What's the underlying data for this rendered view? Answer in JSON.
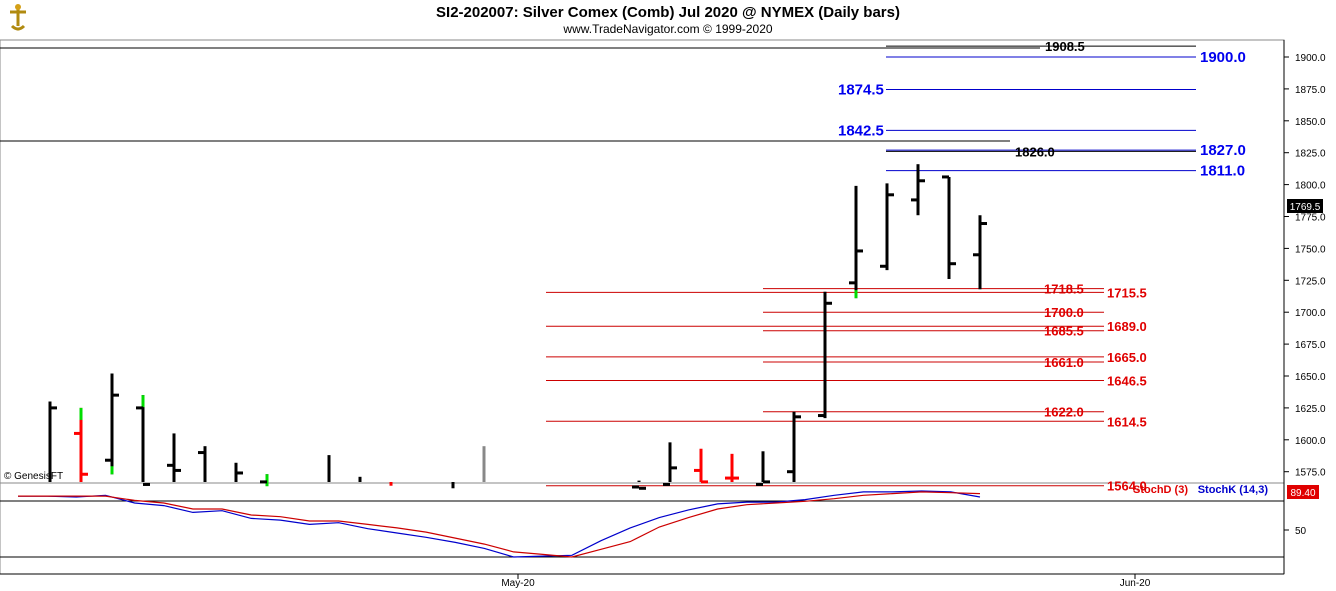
{
  "header": {
    "title": "SI2-202007:  Silver Comex (Comb) Jul 2020 @ NYMEX  (Daily bars)",
    "subtitle": "www.TradeNavigator.com © 1999-2020",
    "logo_icon": "ship-wheel-icon"
  },
  "watermark": "© GenesisFT",
  "chart_data": [
    {
      "type": "ohlc",
      "title": "SI2-202007:  Silver Comex (Comb) Jul 2020 @ NYMEX  (Daily bars)",
      "ylim": [
        1555,
        1915
      ],
      "y_ticks": [
        "1900.0",
        "1875.0",
        "1850.0",
        "1825.0",
        "1800.0",
        "1775.0",
        "1750.0",
        "1725.0",
        "1700.0",
        "1675.0",
        "1650.0",
        "1625.0",
        "1600.0",
        "1575.0"
      ],
      "x_labels": [
        "May-20",
        "Jun-20"
      ],
      "last_price": "1769.5",
      "bars": [
        {
          "high": 1630,
          "low": 1555,
          "open": 1555,
          "close": 1625,
          "color": "black"
        },
        {
          "high": 1625,
          "low": 1555,
          "open": 1605,
          "close": 1573,
          "color": "red",
          "green_top": true
        },
        {
          "high": 1652,
          "low": 1573,
          "open": 1584,
          "close": 1635,
          "color": "black",
          "green_bottom": true
        },
        {
          "high": 1635,
          "low": 1563,
          "open": 1625,
          "close": 1565,
          "color": "black",
          "green_top": true
        },
        {
          "high": 1605,
          "low": 1560,
          "open": 1580,
          "close": 1576,
          "color": "black"
        },
        {
          "high": 1595,
          "low": 1555,
          "open": 1590,
          "close": 1555,
          "color": "black"
        },
        {
          "high": 1582,
          "low": 1555,
          "open": 1555,
          "close": 1574,
          "color": "black"
        },
        {
          "high": 1573,
          "low": 1555,
          "open": 1567,
          "close": 1555,
          "color": "black",
          "green_top": true
        },
        {
          "high": 1588,
          "low": 1555,
          "open": 1555,
          "close": 1555,
          "color": "black"
        },
        {
          "high": 1571,
          "low": 1555,
          "open": 1555,
          "close": 1555,
          "color": "black"
        },
        {
          "high": 1564,
          "low": 1555,
          "open": 1555,
          "close": 1555,
          "color": "red"
        },
        {
          "high": 1562,
          "low": 1555,
          "open": 1555,
          "close": 1555,
          "color": "black"
        },
        {
          "high": 1595,
          "low": 1555,
          "open": 1555,
          "close": 1555,
          "color": "gray"
        },
        {
          "high": 1568,
          "low": 1555,
          "open": 1563,
          "close": 1562,
          "color": "black"
        },
        {
          "high": 1598,
          "low": 1555,
          "open": 1565,
          "close": 1578,
          "color": "black"
        },
        {
          "high": 1593,
          "low": 1555,
          "open": 1576,
          "close": 1567,
          "color": "red"
        },
        {
          "high": 1589,
          "low": 1555,
          "open": 1570,
          "close": 1570,
          "color": "red"
        },
        {
          "high": 1591,
          "low": 1555,
          "open": 1565,
          "close": 1567,
          "color": "black"
        },
        {
          "high": 1622,
          "low": 1565,
          "open": 1575,
          "close": 1618,
          "color": "black"
        },
        {
          "high": 1716,
          "low": 1617,
          "open": 1619,
          "close": 1707,
          "color": "black"
        },
        {
          "high": 1799,
          "low": 1711,
          "open": 1723,
          "close": 1748,
          "color": "black",
          "green_bottom": true
        },
        {
          "high": 1801,
          "low": 1733,
          "open": 1736,
          "close": 1792,
          "color": "black"
        },
        {
          "high": 1816,
          "low": 1776,
          "open": 1788,
          "close": 1803,
          "color": "black"
        },
        {
          "high": 1806,
          "low": 1726,
          "open": 1806,
          "close": 1738,
          "color": "black"
        },
        {
          "high": 1776,
          "low": 1718,
          "open": 1745,
          "close": 1769.5,
          "color": "black"
        }
      ],
      "levels": [
        {
          "value": 1908.5,
          "label": "1908.5",
          "color": "#000000",
          "label_side": "inner"
        },
        {
          "value": 1900.0,
          "label": "1900.0",
          "color": "#0000cc",
          "label_side": "outer"
        },
        {
          "value": 1874.5,
          "label": "1874.5",
          "color": "#0000cc",
          "label_side": "left"
        },
        {
          "value": 1842.5,
          "label": "1842.5",
          "color": "#0000cc",
          "label_side": "left"
        },
        {
          "value": 1827.0,
          "label": "1827.0",
          "color": "#0000cc",
          "label_side": "outer"
        },
        {
          "value": 1826.0,
          "label": "1826.0",
          "color": "#000000",
          "label_side": "inner"
        },
        {
          "value": 1811.0,
          "label": "1811.0",
          "color": "#0000cc",
          "label_side": "outer"
        },
        {
          "value": 1718.5,
          "label": "1718.5",
          "color": "#cc0000",
          "label_side": "inner"
        },
        {
          "value": 1715.5,
          "label": "1715.5",
          "color": "#cc0000",
          "label_side": "outer"
        },
        {
          "value": 1700.0,
          "label": "1700.0",
          "color": "#cc0000",
          "label_side": "inner"
        },
        {
          "value": 1689.0,
          "label": "1689.0",
          "color": "#cc0000",
          "label_side": "outer"
        },
        {
          "value": 1685.5,
          "label": "1685.5",
          "color": "#cc0000",
          "label_side": "inner"
        },
        {
          "value": 1665.0,
          "label": "1665.0",
          "color": "#cc0000",
          "label_side": "outer"
        },
        {
          "value": 1661.0,
          "label": "1661.0",
          "color": "#cc0000",
          "label_side": "inner"
        },
        {
          "value": 1646.5,
          "label": "1646.5",
          "color": "#cc0000",
          "label_side": "outer"
        },
        {
          "value": 1622.0,
          "label": "1622.0",
          "color": "#cc0000",
          "label_side": "inner"
        },
        {
          "value": 1614.5,
          "label": "1614.5",
          "color": "#cc0000",
          "label_side": "outer"
        },
        {
          "value": 1564.0,
          "label": "1564.0",
          "color": "#cc0000",
          "label_side": "outer"
        }
      ]
    },
    {
      "type": "line",
      "ylim": [
        0,
        100
      ],
      "y_ticks": [
        "50"
      ],
      "legend": [
        "StochD (3)",
        "StochK (14,3)"
      ],
      "last_value": "89.40",
      "series": [
        {
          "name": "StochK (14,3)",
          "color": "#0000cc",
          "values": [
            90,
            90,
            89,
            91,
            82,
            79,
            71,
            73,
            64,
            62,
            57,
            59,
            52,
            47,
            42,
            36,
            29,
            19,
            20,
            21,
            38,
            53,
            65,
            74,
            81,
            83,
            83,
            86,
            91,
            95,
            95,
            96,
            95,
            89
          ]
        },
        {
          "name": "StochD (3)",
          "color": "#cc0000",
          "values": [
            90,
            90,
            90,
            90,
            85,
            82,
            75,
            75,
            68,
            66,
            61,
            61,
            57,
            53,
            48,
            41,
            34,
            25,
            22,
            19,
            28,
            37,
            54,
            65,
            75,
            80,
            82,
            84,
            87,
            91,
            93,
            95,
            94,
            93
          ]
        }
      ]
    }
  ]
}
